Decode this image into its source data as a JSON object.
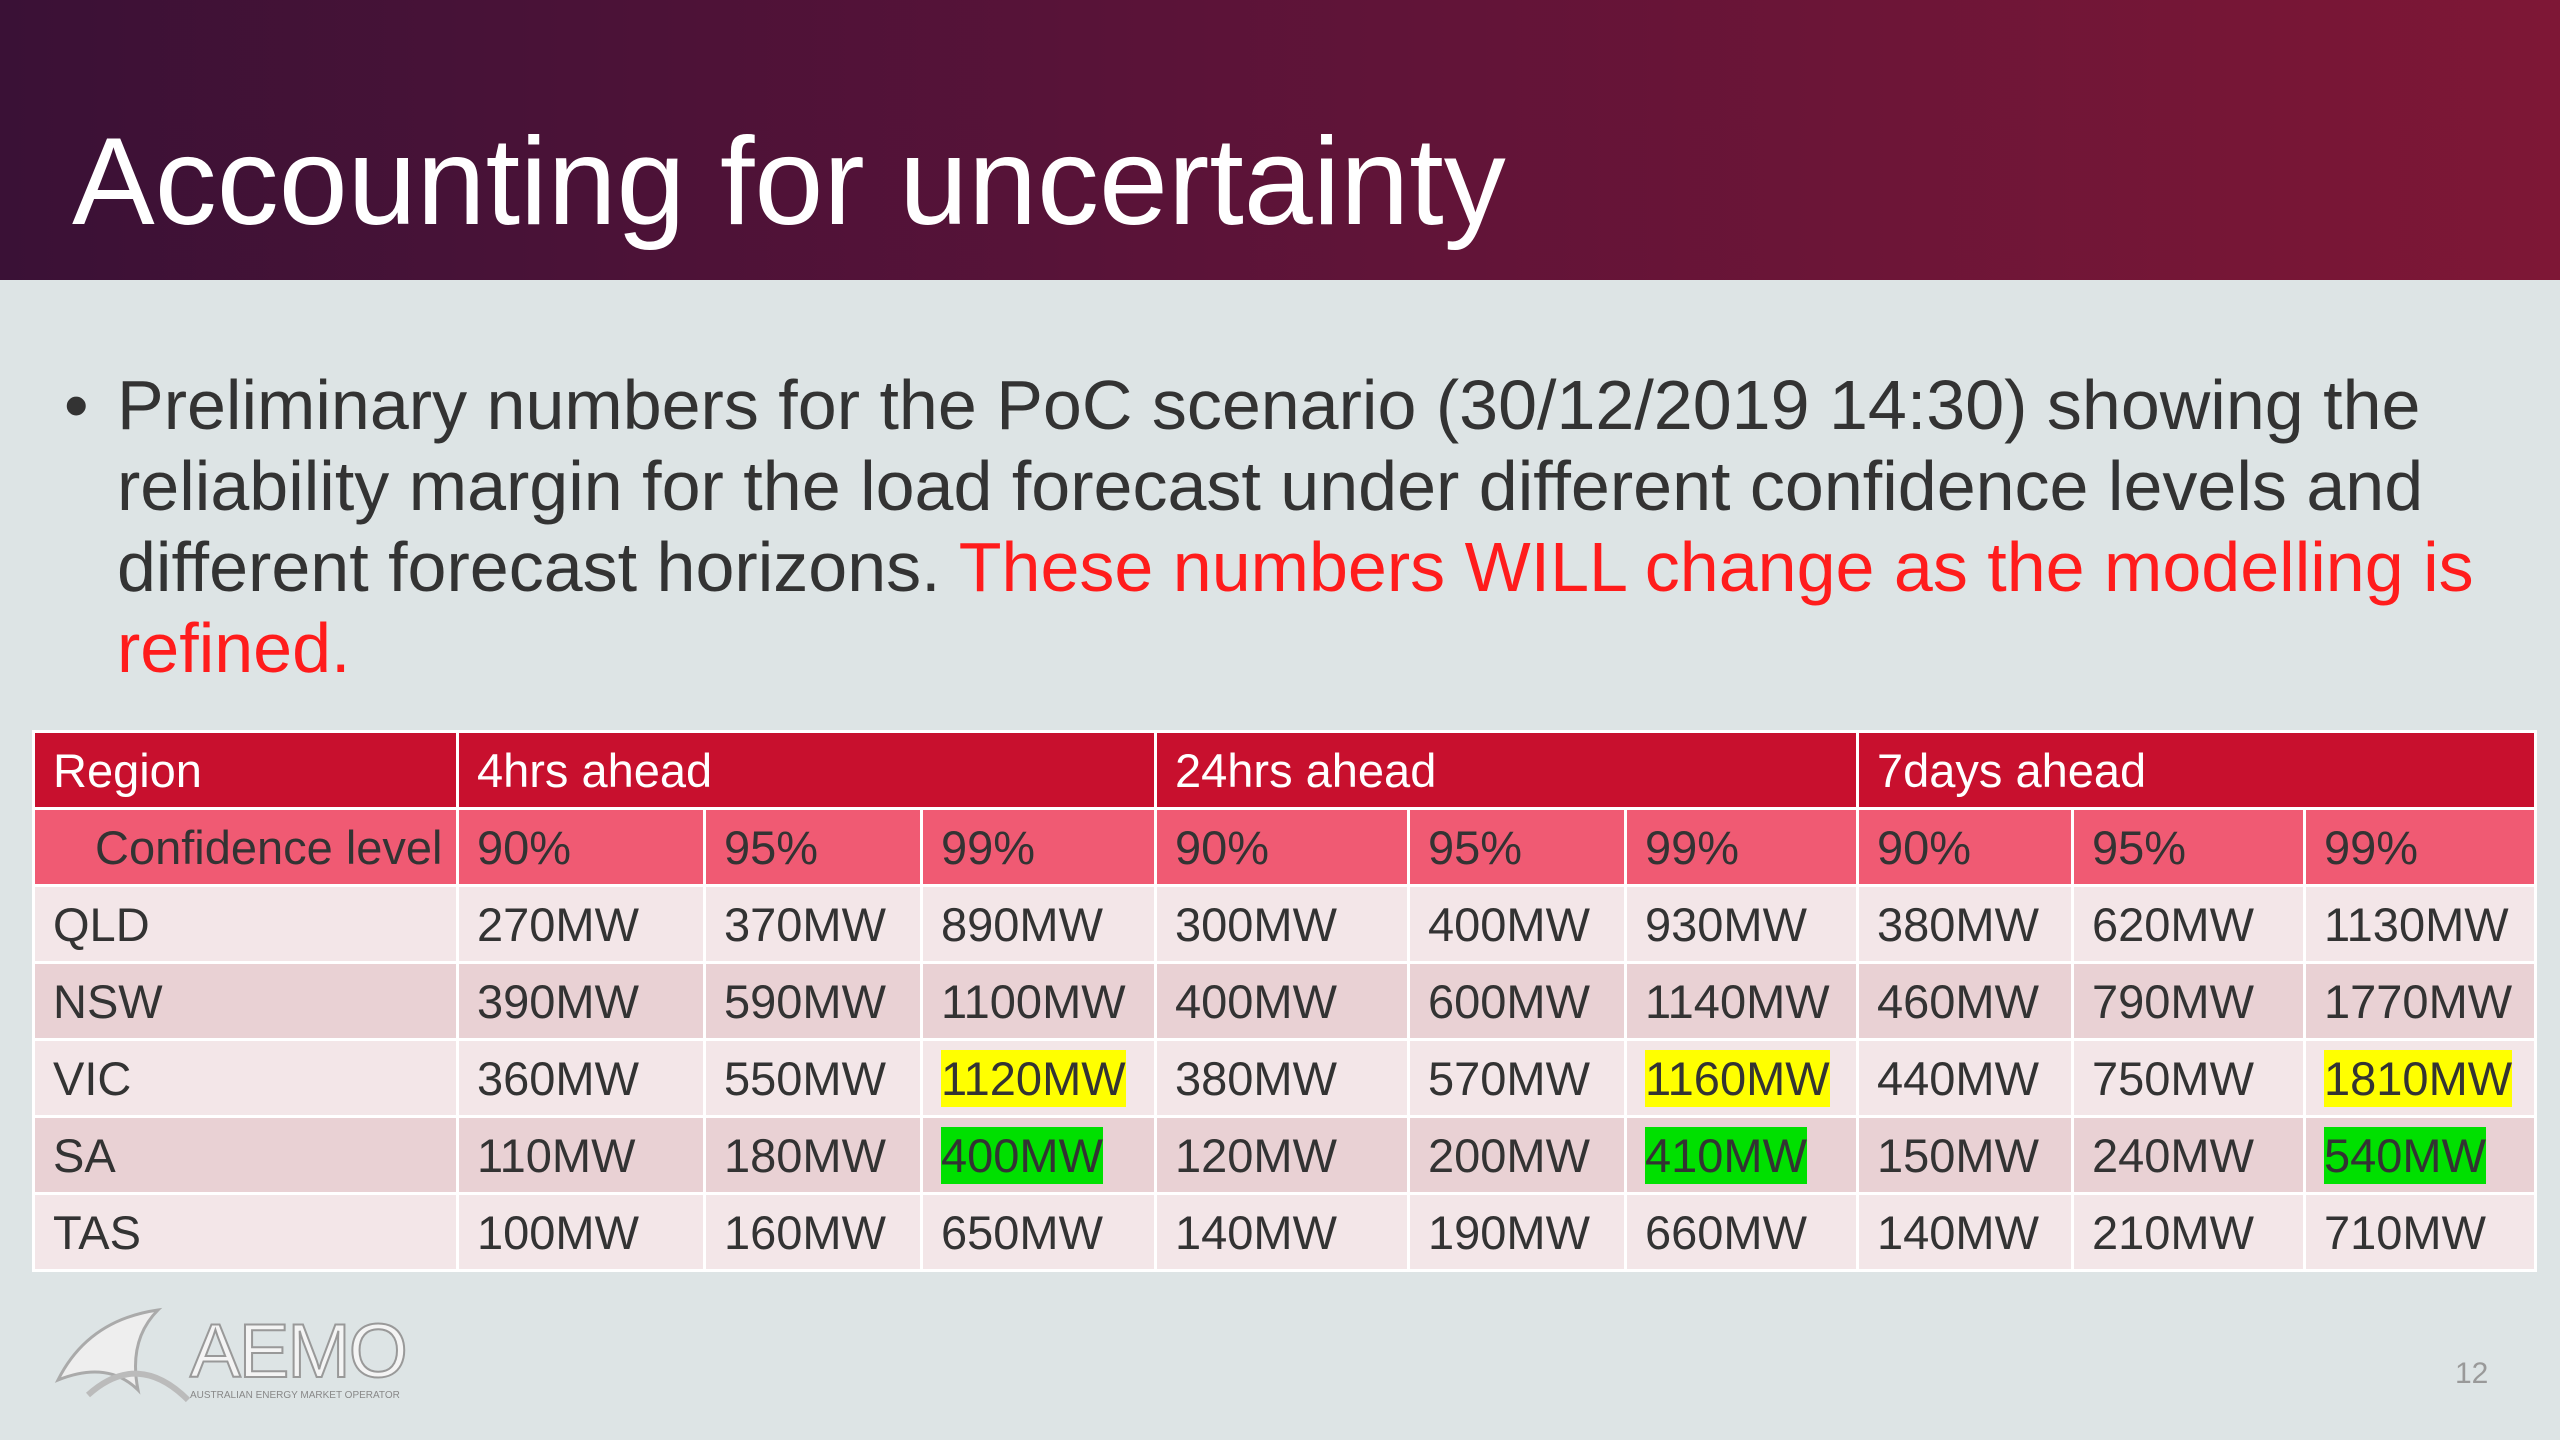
{
  "header": {
    "title": "Accounting for uncertainty"
  },
  "bullet": {
    "text": "Preliminary numbers for the PoC scenario (30/12/2019 14:30) showing the reliability margin for the load forecast under different confidence levels and different forecast horizons.",
    "emphasis": "These numbers WILL change as the modelling is refined."
  },
  "table": {
    "groups": [
      {
        "text": "Region",
        "span": 1
      },
      {
        "text": "4hrs ahead",
        "span": 3
      },
      {
        "text": "24hrs ahead",
        "span": 3
      },
      {
        "text": "7days ahead",
        "span": 3
      }
    ],
    "subheader": [
      "Confidence level",
      "90%",
      "95%",
      "99%",
      "90%",
      "95%",
      "99%",
      "90%",
      "95%",
      "99%"
    ],
    "rows": [
      [
        "QLD",
        "270MW",
        "370MW",
        "890MW",
        "300MW",
        "400MW",
        "930MW",
        "380MW",
        "620MW",
        "1130MW"
      ],
      [
        "NSW",
        "390MW",
        "590MW",
        "1100MW",
        "400MW",
        "600MW",
        "1140MW",
        "460MW",
        "790MW",
        "1770MW"
      ],
      [
        "VIC",
        "360MW",
        "550MW",
        {
          "text": "1120MW",
          "highlight": "#ffff00"
        },
        "380MW",
        "570MW",
        {
          "text": "1160MW",
          "highlight": "#ffff00"
        },
        "440MW",
        "750MW",
        {
          "text": "1810MW",
          "highlight": "#ffff00"
        }
      ],
      [
        "SA",
        "110MW",
        "180MW",
        {
          "text": "400MW",
          "highlight": "#00e000"
        },
        "120MW",
        "200MW",
        {
          "text": "410MW",
          "highlight": "#00e000"
        },
        "150MW",
        "240MW",
        {
          "text": "540MW",
          "highlight": "#00e000"
        }
      ],
      [
        "TAS",
        "100MW",
        "160MW",
        "650MW",
        "140MW",
        "190MW",
        "660MW",
        "140MW",
        "210MW",
        "710MW"
      ]
    ]
  },
  "footer": {
    "logo": "AEMO",
    "logo_subtitle": "AUSTRALIAN ENERGY MARKET OPERATOR",
    "page_number": "12"
  }
}
